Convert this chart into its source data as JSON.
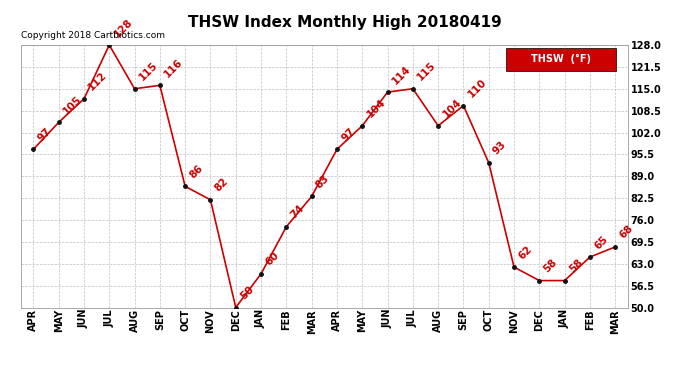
{
  "title": "THSW Index Monthly High 20180419",
  "copyright": "Copyright 2018 Cartbiotics.com",
  "legend_label": "THSW  (°F)",
  "months": [
    "APR",
    "MAY",
    "JUN",
    "JUL",
    "AUG",
    "SEP",
    "OCT",
    "NOV",
    "DEC",
    "JAN",
    "FEB",
    "MAR",
    "APR",
    "MAY",
    "JUN",
    "JUL",
    "AUG",
    "SEP",
    "OCT",
    "NOV",
    "DEC",
    "JAN",
    "FEB",
    "MAR"
  ],
  "values": [
    97,
    105,
    112,
    128,
    115,
    116,
    86,
    82,
    50,
    60,
    74,
    83,
    97,
    104,
    114,
    115,
    104,
    110,
    93,
    62,
    58,
    58,
    65,
    68
  ],
  "ylim_min": 50.0,
  "ylim_max": 128.0,
  "yticks": [
    50.0,
    56.5,
    63.0,
    69.5,
    76.0,
    82.5,
    89.0,
    95.5,
    102.0,
    108.5,
    115.0,
    121.5,
    128.0
  ],
  "line_color": "#cc0000",
  "marker_color": "#111111",
  "bg_color": "#ffffff",
  "grid_color": "#c0c0c0",
  "title_fontsize": 11,
  "tick_fontsize": 7,
  "annot_fontsize": 7.5,
  "copyright_fontsize": 6.5,
  "legend_bg": "#cc0000",
  "legend_text_color": "#ffffff",
  "legend_fontsize": 7
}
